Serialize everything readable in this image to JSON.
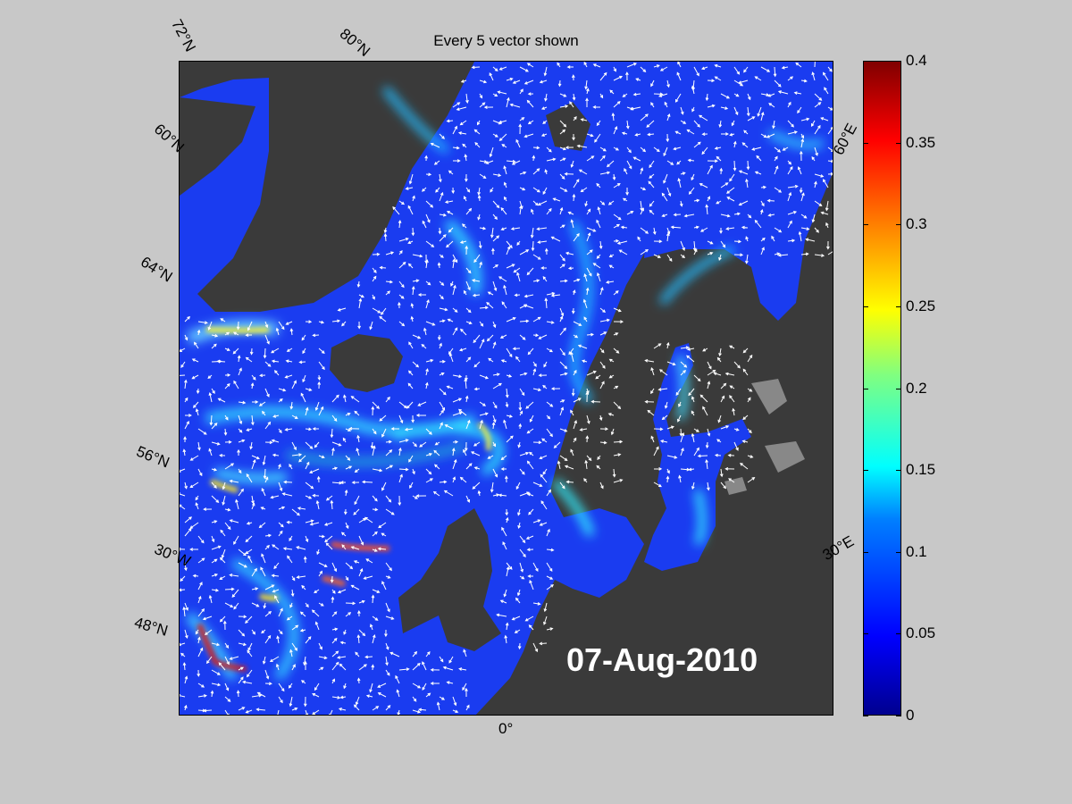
{
  "title": "Every 5 vector shown",
  "date_stamp": "07-Aug-2010",
  "grid_labels": {
    "lat_72n": "72°N",
    "lat_60n": "60°N",
    "lat_64n": "64°N",
    "lat_56n": "56°N",
    "lat_48n": "48°N",
    "lon_80n": "80°N",
    "lon_30w": "30°W",
    "lon_0": "0°",
    "lon_30e": "30°E",
    "lon_60e": "60°E"
  },
  "colorbar": {
    "min": 0,
    "max": 0.4,
    "ticks": [
      "0",
      "0.05",
      "0.1",
      "0.15",
      "0.2",
      "0.25",
      "0.3",
      "0.35",
      "0.4"
    ],
    "colormap": "jet"
  },
  "colors": {
    "land": "#3a3a3a",
    "sea_ice_land": "#888888",
    "background": "#c8c8c8",
    "vectors": "#ffffff"
  }
}
